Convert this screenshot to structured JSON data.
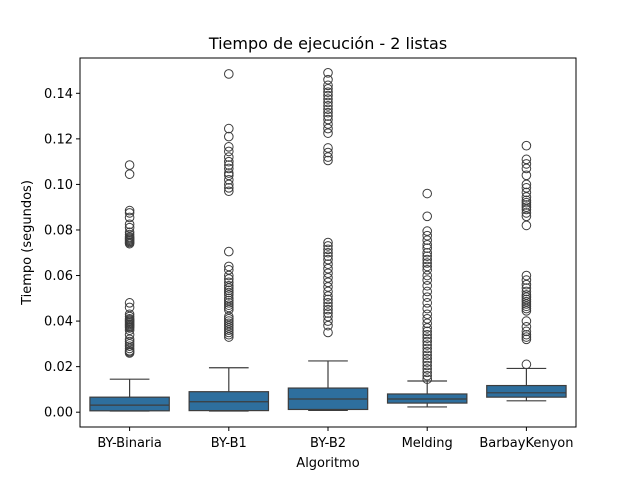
{
  "chart_data": {
    "type": "box",
    "title": "Tiempo de ejecución - 2 listas",
    "xlabel": "Algoritmo",
    "ylabel": "Tiempo (segundos)",
    "ylim": [
      -0.0065,
      0.1555
    ],
    "yticks": [
      0.0,
      0.02,
      0.04,
      0.06,
      0.08,
      0.1,
      0.12,
      0.14
    ],
    "ytick_labels": [
      "0.00",
      "0.02",
      "0.04",
      "0.06",
      "0.08",
      "0.10",
      "0.12",
      "0.14"
    ],
    "grid": false,
    "legend": "none",
    "box_color": "#2e6f9e",
    "edge_color": "#3d3d3d",
    "categories": [
      "BY-Binaria",
      "BY-B1",
      "BY-B2",
      "Melding",
      "BarbayKenyon"
    ],
    "boxes": [
      {
        "name": "BY-Binaria",
        "whisker_low": 0.0005,
        "q1": 0.0006,
        "median": 0.0031,
        "q3": 0.0066,
        "whisker_high": 0.0145,
        "outliers": [
          0.1085,
          0.1045,
          0.0885,
          0.0875,
          0.0855,
          0.0825,
          0.081,
          0.079,
          0.078,
          0.077,
          0.0765,
          0.076,
          0.0755,
          0.075,
          0.0745,
          0.074,
          0.048,
          0.046,
          0.043,
          0.042,
          0.041,
          0.0405,
          0.04,
          0.0395,
          0.039,
          0.0385,
          0.038,
          0.0375,
          0.037,
          0.036,
          0.034,
          0.032,
          0.031,
          0.03,
          0.029,
          0.028,
          0.027,
          0.0265,
          0.026
        ]
      },
      {
        "name": "BY-B1",
        "whisker_low": 0.0005,
        "q1": 0.0007,
        "median": 0.0046,
        "q3": 0.009,
        "whisker_high": 0.0195,
        "outliers": [
          0.1485,
          0.1245,
          0.121,
          0.1165,
          0.1145,
          0.112,
          0.11,
          0.1085,
          0.107,
          0.105,
          0.104,
          0.102,
          0.1,
          0.0985,
          0.097,
          0.0705,
          0.064,
          0.0625,
          0.06,
          0.0585,
          0.057,
          0.0555,
          0.0545,
          0.0535,
          0.0525,
          0.0515,
          0.05,
          0.049,
          0.048,
          0.047,
          0.046,
          0.045,
          0.042,
          0.041,
          0.04,
          0.039,
          0.038,
          0.037,
          0.036,
          0.035,
          0.034,
          0.033
        ]
      },
      {
        "name": "BY-B2",
        "whisker_low": 0.0008,
        "q1": 0.0012,
        "median": 0.0058,
        "q3": 0.0106,
        "whisker_high": 0.0225,
        "outliers": [
          0.149,
          0.146,
          0.1435,
          0.142,
          0.1405,
          0.139,
          0.1375,
          0.136,
          0.1345,
          0.133,
          0.1315,
          0.13,
          0.1285,
          0.1265,
          0.1245,
          0.1225,
          0.116,
          0.114,
          0.112,
          0.1105,
          0.0745,
          0.073,
          0.0715,
          0.07,
          0.0685,
          0.067,
          0.065,
          0.063,
          0.061,
          0.059,
          0.057,
          0.055,
          0.053,
          0.051,
          0.0495,
          0.048,
          0.0465,
          0.045,
          0.0435,
          0.042,
          0.04,
          0.038,
          0.035
        ]
      },
      {
        "name": "Melding",
        "whisker_low": 0.0023,
        "q1": 0.004,
        "median": 0.0058,
        "q3": 0.008,
        "whisker_high": 0.0137,
        "outliers": [
          0.096,
          0.086,
          0.0795,
          0.0775,
          0.0755,
          0.0735,
          0.072,
          0.07,
          0.0685,
          0.067,
          0.0655,
          0.064,
          0.0625,
          0.06,
          0.058,
          0.0555,
          0.053,
          0.0505,
          0.048,
          0.0455,
          0.043,
          0.041,
          0.039,
          0.037,
          0.0355,
          0.034,
          0.0325,
          0.031,
          0.0295,
          0.028,
          0.0265,
          0.025,
          0.0235,
          0.022,
          0.0205,
          0.019,
          0.0175,
          0.016,
          0.0145
        ]
      },
      {
        "name": "BarbayKenyon",
        "whisker_low": 0.005,
        "q1": 0.0066,
        "median": 0.0085,
        "q3": 0.0117,
        "whisker_high": 0.0192,
        "outliers": [
          0.117,
          0.111,
          0.109,
          0.107,
          0.104,
          0.1,
          0.0985,
          0.0965,
          0.0945,
          0.093,
          0.092,
          0.091,
          0.09,
          0.089,
          0.0875,
          0.086,
          0.082,
          0.06,
          0.058,
          0.056,
          0.0545,
          0.053,
          0.0515,
          0.0505,
          0.0495,
          0.0485,
          0.0475,
          0.0465,
          0.0455,
          0.0445,
          0.04,
          0.0375,
          0.0355,
          0.034,
          0.033,
          0.032,
          0.021
        ]
      }
    ]
  }
}
